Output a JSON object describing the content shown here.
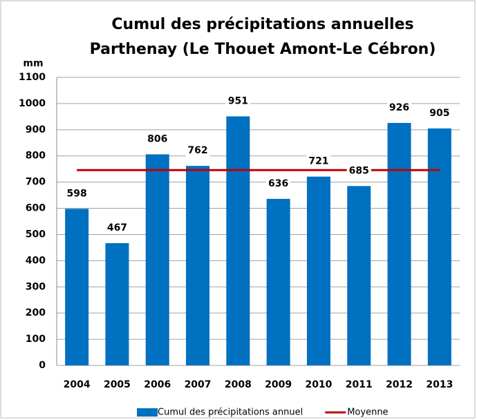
{
  "chart_data": {
    "type": "bar",
    "title": "Cumul des précipitations annuelles",
    "subtitle": "Parthenay (Le Thouet Amont-Le Cébron)",
    "y_label": "mm",
    "categories": [
      "2004",
      "2005",
      "2006",
      "2007",
      "2008",
      "2009",
      "2010",
      "2011",
      "2012",
      "2013"
    ],
    "series": [
      {
        "name": "Cumul des précipitations annuel",
        "color": "#0070c0",
        "values": [
          598,
          467,
          806,
          762,
          951,
          636,
          721,
          685,
          926,
          905
        ]
      },
      {
        "name": "Moyenne",
        "color": "#c00000",
        "type": "line",
        "values": [
          746,
          746,
          746,
          746,
          746,
          746,
          746,
          746,
          746,
          746
        ]
      }
    ],
    "ylim": [
      0,
      1100
    ],
    "yticks": [
      0,
      100,
      200,
      300,
      400,
      500,
      600,
      700,
      800,
      900,
      1000,
      1100
    ],
    "grid": true,
    "legend": "bottom"
  }
}
